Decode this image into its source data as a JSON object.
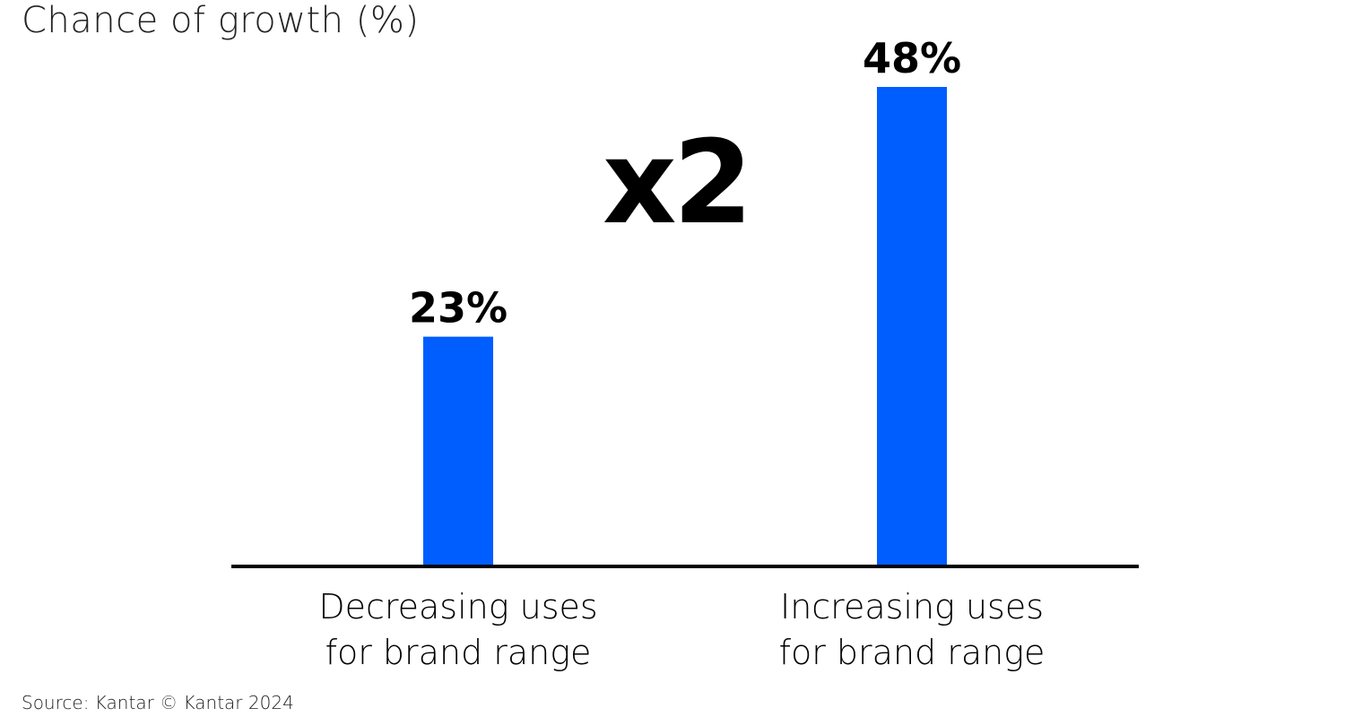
{
  "chart_data": {
    "type": "bar",
    "title": "Chance of growth (%)",
    "categories": [
      [
        "Decreasing uses",
        "for brand range"
      ],
      [
        "Increasing uses",
        "for brand range"
      ]
    ],
    "values": [
      23,
      48
    ],
    "data_labels": [
      "23%",
      "48%"
    ],
    "annotation": "x2",
    "ylim": [
      0,
      48
    ],
    "grid": false,
    "bar_color": "#005EFF",
    "source": "Source: Kantar © Kantar 2024"
  }
}
